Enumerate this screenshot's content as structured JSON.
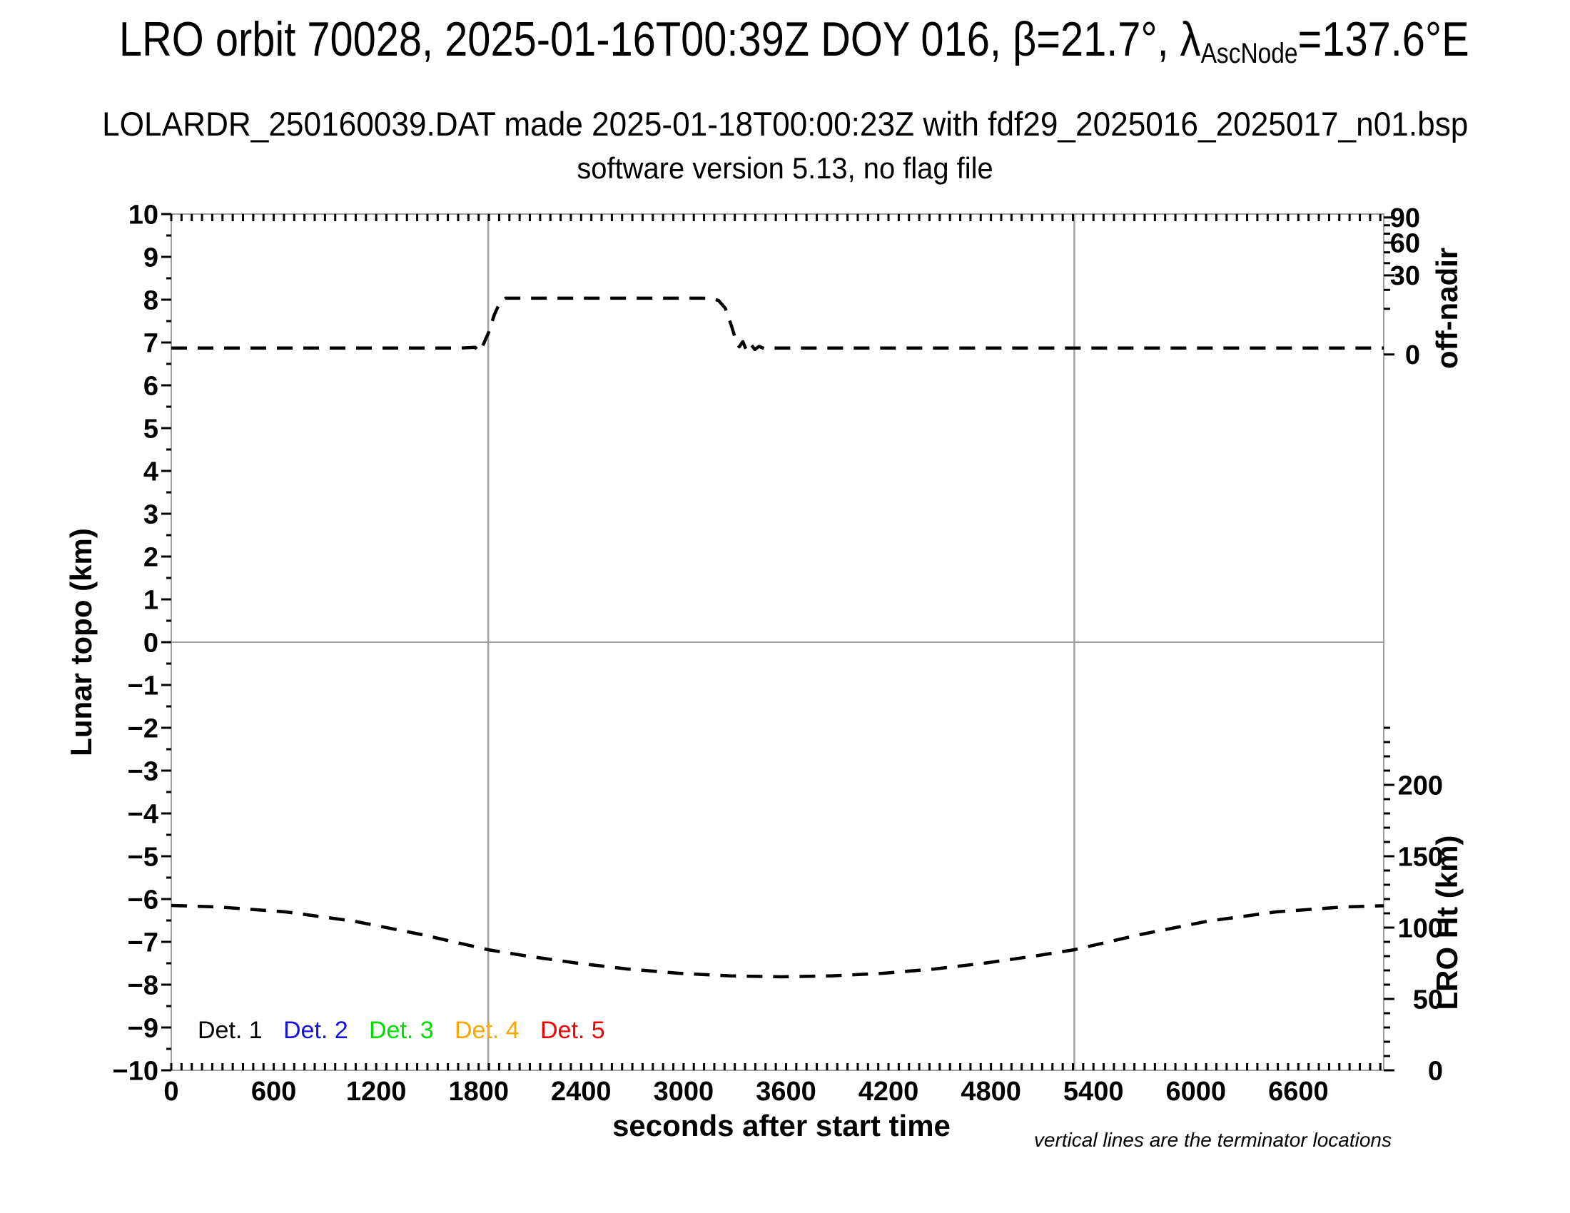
{
  "header": {
    "title_prefix": "LRO orbit 70028, 2025-01-16T00:39Z DOY 016, β=21.7°, λ",
    "title_sub": "AscNode",
    "title_suffix": "=137.6°E",
    "subtitle": "LOLARDR_250160039.DAT made 2025-01-18T00:00:23Z with fdf29_2025016_2025017_n01.bsp",
    "version_line": "software version 5.13, no flag file"
  },
  "chart_data": {
    "type": "line",
    "title": "LRO orbit 70028, 2025-01-16T00:39Z DOY 016, β=21.7°, λAscNode=137.6°E",
    "xlabel": "seconds after start time",
    "ylabel_left": "Lunar topo (km)",
    "ylabel_right_top": "off-nadir",
    "ylabel_right_bottom": "LRO Ht (km)",
    "footnote": "vertical lines are the terminator locations",
    "x_range_s": [
      0,
      7100
    ],
    "x_ticks": [
      0,
      600,
      1200,
      1800,
      2400,
      3000,
      3600,
      4200,
      4800,
      5400,
      6000,
      6600
    ],
    "x_minor_step_s": 60,
    "topo_axis": {
      "range": [
        -10,
        10
      ],
      "major_step": 1,
      "minor_step": 0.5
    },
    "off_nadir_axis": {
      "scale": "sqrt",
      "ticks": [
        0,
        30,
        60,
        90
      ],
      "minor_ticks": [
        10,
        20,
        40,
        50,
        70,
        80
      ],
      "zero_at_topo": 6.72,
      "topo_span_to_90deg": 3.2
    },
    "lro_ht_axis": {
      "ticks": [
        0,
        50,
        100,
        150,
        200
      ],
      "minor_step_km": 10,
      "minor_max_km": 240,
      "km_at_topo_minus10": 0,
      "km_per_topo_unit": 30
    },
    "terminator_lines_s": [
      1856,
      5288
    ],
    "grid": {
      "horizontal_zero_line": true,
      "legend_position": "bottom-left-inside"
    },
    "legend": [
      {
        "label": "Det. 1",
        "color": "#000000"
      },
      {
        "label": "Det. 2",
        "color": "#1212e0"
      },
      {
        "label": "Det. 3",
        "color": "#00dd00"
      },
      {
        "label": "Det. 4",
        "color": "#ffa500"
      },
      {
        "label": "Det. 5",
        "color": "#f00000"
      }
    ],
    "series": [
      {
        "name": "spacecraft off-nadir angle",
        "axis": "off_nadir_deg",
        "line_style": "dashed",
        "color": "#000000",
        "points_t_deg": [
          [
            0,
            0.2
          ],
          [
            300,
            0.2
          ],
          [
            600,
            0.2
          ],
          [
            900,
            0.2
          ],
          [
            1200,
            0.2
          ],
          [
            1500,
            0.2
          ],
          [
            1700,
            0.2
          ],
          [
            1780,
            0.25
          ],
          [
            1802,
            0.04
          ],
          [
            1828,
            0.5
          ],
          [
            1858,
            2.3
          ],
          [
            1892,
            7.6
          ],
          [
            1926,
            13.3
          ],
          [
            1956,
            15.2
          ],
          [
            2200,
            15.2
          ],
          [
            2500,
            15.2
          ],
          [
            2800,
            15.2
          ],
          [
            3000,
            15.2
          ],
          [
            3100,
            15.2
          ],
          [
            3160,
            15.1
          ],
          [
            3205,
            14.0
          ],
          [
            3245,
            10.2
          ],
          [
            3278,
            4.3
          ],
          [
            3306,
            1.0
          ],
          [
            3326,
            0.28
          ],
          [
            3347,
            0.8
          ],
          [
            3367,
            0.1
          ],
          [
            3392,
            0.55
          ],
          [
            3417,
            0.12
          ],
          [
            3442,
            0.32
          ],
          [
            3472,
            0.17
          ],
          [
            3520,
            0.2
          ],
          [
            3800,
            0.2
          ],
          [
            4100,
            0.2
          ],
          [
            4400,
            0.2
          ],
          [
            4700,
            0.2
          ],
          [
            5000,
            0.2
          ],
          [
            5300,
            0.2
          ],
          [
            5600,
            0.2
          ],
          [
            5900,
            0.2
          ],
          [
            6200,
            0.2
          ],
          [
            6500,
            0.2
          ],
          [
            6800,
            0.2
          ],
          [
            7100,
            0.2
          ]
        ]
      },
      {
        "name": "LRO height above surface",
        "axis": "lro_ht_km",
        "line_style": "dashed",
        "color": "#000000",
        "points_t_km": [
          [
            0,
            115.5
          ],
          [
            270,
            114.5
          ],
          [
            670,
            111.0
          ],
          [
            1070,
            104.5
          ],
          [
            1470,
            95.0
          ],
          [
            1856,
            84.5
          ],
          [
            2070,
            80.3
          ],
          [
            2370,
            75.2
          ],
          [
            2670,
            71.0
          ],
          [
            2970,
            68.0
          ],
          [
            3270,
            66.2
          ],
          [
            3570,
            65.5
          ],
          [
            3870,
            66.2
          ],
          [
            4170,
            68.0
          ],
          [
            4470,
            71.0
          ],
          [
            4770,
            75.2
          ],
          [
            5070,
            80.3
          ],
          [
            5288,
            84.5
          ],
          [
            5670,
            95.0
          ],
          [
            6070,
            104.5
          ],
          [
            6470,
            111.0
          ],
          [
            6870,
            114.5
          ],
          [
            7100,
            115.3
          ]
        ]
      }
    ]
  }
}
